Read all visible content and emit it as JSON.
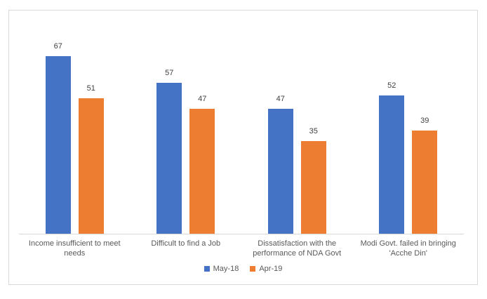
{
  "chart_data": {
    "type": "bar",
    "title": "",
    "categories": [
      "Income insufficient to meet needs",
      "Difficult to find a Job",
      "Dissatisfaction with the performance of NDA Govt",
      "Modi Govt. failed in bringing 'Acche Din'"
    ],
    "series": [
      {
        "name": "May-18",
        "color": "#4472C4",
        "values": [
          67,
          57,
          47,
          52
        ]
      },
      {
        "name": "Apr-19",
        "color": "#ED7D31",
        "values": [
          51,
          47,
          35,
          39
        ]
      }
    ],
    "ylim": [
      0,
      80
    ],
    "grid": false,
    "axis_visible": "x-only",
    "legend_position": "bottom",
    "data_labels": true
  },
  "colors": {
    "frame_border": "#D9D9D9",
    "axis_line": "#D9D9D9",
    "value_label_text": "#404040",
    "category_label_text": "#595959",
    "legend_text": "#595959",
    "background": "#ffffff"
  }
}
